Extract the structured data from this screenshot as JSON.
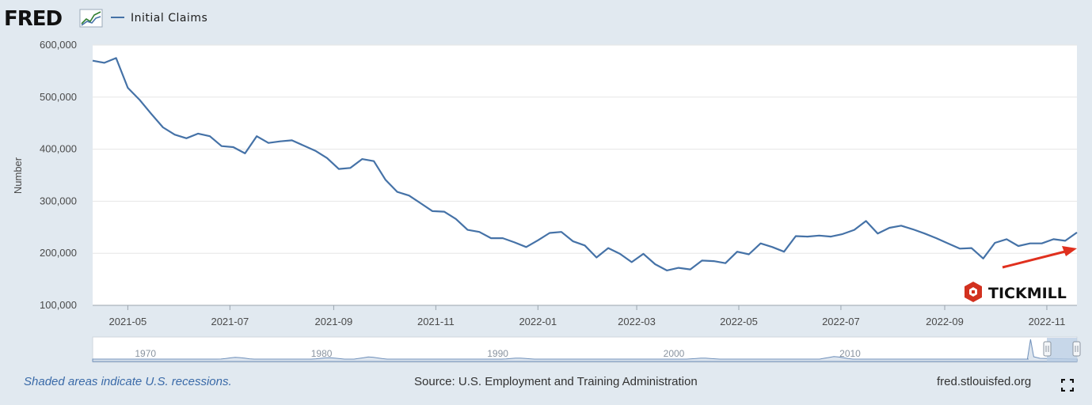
{
  "header": {
    "logo_text": "FRED",
    "logo_icon": "line-graph-icon",
    "legend_label": "Initial Claims"
  },
  "colors": {
    "line": "#4572a7",
    "arrow": "#e0301e",
    "tickmill_red": "#d2311f",
    "navigator_fill": "#dde5ee",
    "navigator_selection": "#b9cde3"
  },
  "chart_data": {
    "type": "line",
    "ylabel": "Number",
    "ylim": [
      100000,
      600000
    ],
    "yticks": [
      100000,
      200000,
      300000,
      400000,
      500000,
      600000
    ],
    "ytick_labels": [
      "100,000",
      "200,000",
      "300,000",
      "400,000",
      "500,000",
      "600,000"
    ],
    "xlim": [
      "2021-04-10",
      "2022-11-19"
    ],
    "xticks": [
      "2021-05-01",
      "2021-07-01",
      "2021-09-01",
      "2021-11-01",
      "2022-01-01",
      "2022-03-01",
      "2022-05-01",
      "2022-07-01",
      "2022-09-01",
      "2022-11-01"
    ],
    "xtick_labels": [
      "2021-05",
      "2021-07",
      "2021-09",
      "2021-11",
      "2022-01",
      "2022-03",
      "2022-05",
      "2022-07",
      "2022-09",
      "2022-11"
    ],
    "grid": true,
    "legend_position": "top-left",
    "series": [
      {
        "name": "Initial Claims",
        "x": [
          "2021-04-10",
          "2021-04-17",
          "2021-04-24",
          "2021-05-01",
          "2021-05-08",
          "2021-05-15",
          "2021-05-22",
          "2021-05-29",
          "2021-06-05",
          "2021-06-12",
          "2021-06-19",
          "2021-06-26",
          "2021-07-03",
          "2021-07-10",
          "2021-07-17",
          "2021-07-24",
          "2021-07-31",
          "2021-08-07",
          "2021-08-14",
          "2021-08-21",
          "2021-08-28",
          "2021-09-04",
          "2021-09-11",
          "2021-09-18",
          "2021-09-25",
          "2021-10-02",
          "2021-10-09",
          "2021-10-16",
          "2021-10-23",
          "2021-10-30",
          "2021-11-06",
          "2021-11-13",
          "2021-11-20",
          "2021-11-27",
          "2021-12-04",
          "2021-12-11",
          "2021-12-18",
          "2021-12-25",
          "2022-01-01",
          "2022-01-08",
          "2022-01-15",
          "2022-01-22",
          "2022-01-29",
          "2022-02-05",
          "2022-02-12",
          "2022-02-19",
          "2022-02-26",
          "2022-03-05",
          "2022-03-12",
          "2022-03-19",
          "2022-03-26",
          "2022-04-02",
          "2022-04-09",
          "2022-04-16",
          "2022-04-23",
          "2022-04-30",
          "2022-05-07",
          "2022-05-14",
          "2022-05-21",
          "2022-05-28",
          "2022-06-04",
          "2022-06-11",
          "2022-06-18",
          "2022-06-25",
          "2022-07-02",
          "2022-07-09",
          "2022-07-16",
          "2022-07-23",
          "2022-07-30",
          "2022-08-06",
          "2022-08-13",
          "2022-08-20",
          "2022-08-27",
          "2022-09-03",
          "2022-09-10",
          "2022-09-17",
          "2022-09-24",
          "2022-10-01",
          "2022-10-08",
          "2022-10-15",
          "2022-10-22",
          "2022-10-29",
          "2022-11-05",
          "2022-11-12",
          "2022-11-19"
        ],
        "values": [
          570000,
          566000,
          575000,
          518000,
          495000,
          468000,
          442000,
          428000,
          421000,
          430000,
          425000,
          406000,
          404000,
          392000,
          425000,
          412000,
          415000,
          417000,
          407000,
          397000,
          383000,
          362000,
          364000,
          381000,
          377000,
          341000,
          318000,
          311000,
          296000,
          281000,
          280000,
          266000,
          245000,
          241000,
          229000,
          229000,
          221000,
          212000,
          225000,
          239000,
          241000,
          223000,
          215000,
          192000,
          210000,
          199000,
          183000,
          199000,
          179000,
          167000,
          172000,
          169000,
          186000,
          185000,
          181000,
          203000,
          198000,
          219000,
          212000,
          203000,
          233000,
          232000,
          234000,
          232000,
          237000,
          245000,
          262000,
          238000,
          249000,
          253000,
          246000,
          238000,
          229000,
          219000,
          209000,
          210000,
          190000,
          220000,
          227000,
          214000,
          219000,
          219000,
          227000,
          224000,
          240000
        ]
      }
    ],
    "navigator_labels": [
      "1970",
      "1980",
      "1990",
      "2000",
      "2010"
    ]
  },
  "watermark": {
    "text": "TICKMILL",
    "icon": "tickmill-hexagon-logo"
  },
  "annotation": {
    "icon": "red-arrow"
  },
  "footer": {
    "note": "Shaded areas indicate U.S. recessions.",
    "source": "Source: U.S. Employment and Training Administration",
    "url": "fred.stlouisfed.org",
    "fullscreen_icon": "fullscreen-icon"
  }
}
